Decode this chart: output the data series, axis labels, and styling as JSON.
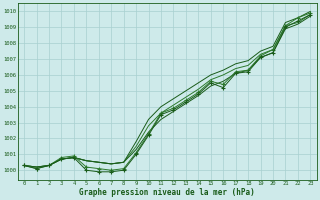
{
  "title": "Graphe pression niveau de la mer (hPa)",
  "xlim": [
    -0.5,
    23.5
  ],
  "ylim": [
    999.4,
    1010.5
  ],
  "yticks": [
    1000,
    1001,
    1002,
    1003,
    1004,
    1005,
    1006,
    1007,
    1008,
    1009,
    1010
  ],
  "xticks": [
    0,
    1,
    2,
    3,
    4,
    5,
    6,
    7,
    8,
    9,
    10,
    11,
    12,
    13,
    14,
    15,
    16,
    17,
    18,
    19,
    20,
    21,
    22,
    23
  ],
  "bg_color": "#ceeaea",
  "grid_color": "#a8d0d0",
  "line_dark": "#1a5c1a",
  "line_mid": "#2d7a2d",
  "series_smooth1": [
    1000.3,
    1000.2,
    1000.3,
    1000.7,
    1000.8,
    1000.6,
    1000.5,
    1000.4,
    1000.5,
    1001.3,
    1002.4,
    1003.2,
    1003.7,
    1004.2,
    1004.7,
    1005.3,
    1005.6,
    1006.1,
    1006.3,
    1007.1,
    1007.4,
    1008.9,
    1009.2,
    1009.7
  ],
  "series_smooth2": [
    1000.3,
    1000.2,
    1000.3,
    1000.7,
    1000.8,
    1000.6,
    1000.5,
    1000.4,
    1000.5,
    1001.5,
    1002.8,
    1003.6,
    1004.1,
    1004.6,
    1005.1,
    1005.7,
    1006.0,
    1006.4,
    1006.6,
    1007.3,
    1007.6,
    1009.1,
    1009.3,
    1009.8
  ],
  "series_smooth3": [
    1000.3,
    1000.2,
    1000.3,
    1000.7,
    1000.8,
    1000.6,
    1000.5,
    1000.4,
    1000.5,
    1001.8,
    1003.2,
    1004.0,
    1004.5,
    1005.0,
    1005.5,
    1006.0,
    1006.3,
    1006.7,
    1006.9,
    1007.5,
    1007.8,
    1009.3,
    1009.6,
    1010.0
  ],
  "series_marker": [
    1000.3,
    1000.1,
    1000.3,
    1000.8,
    1000.9,
    1000.2,
    1000.1,
    1000.0,
    1000.1,
    1001.1,
    1002.3,
    1003.6,
    1003.9,
    1004.4,
    1004.9,
    1005.6,
    1005.4,
    1006.2,
    1006.3,
    1007.2,
    1007.6,
    1009.1,
    1009.6,
    1009.9
  ],
  "series_dip": [
    1000.3,
    1000.1,
    1000.3,
    1000.7,
    1000.8,
    1000.0,
    999.9,
    999.9,
    1000.0,
    1001.0,
    1002.2,
    1003.5,
    1003.8,
    1004.3,
    1004.8,
    1005.5,
    1005.2,
    1006.1,
    1006.2,
    1007.1,
    1007.4,
    1009.0,
    1009.4,
    1009.8
  ]
}
